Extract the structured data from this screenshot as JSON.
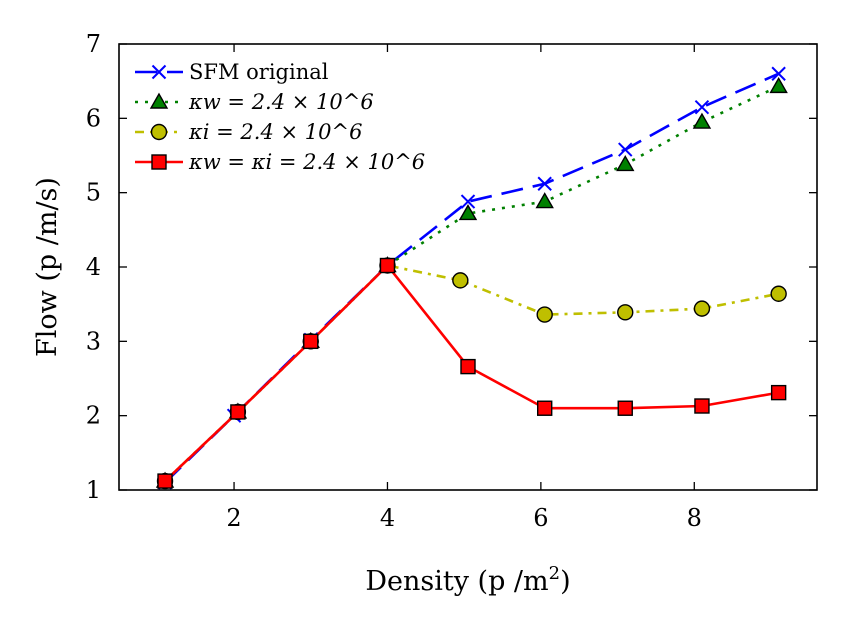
{
  "chart_data": {
    "type": "line",
    "xlabel": "Density (p /m",
    "xlabel_superscript": "2",
    "xlabel_suffix": ")",
    "ylabel": "Flow (p /m/s)",
    "xlim": [
      0.5,
      9.6
    ],
    "ylim": [
      1,
      7
    ],
    "xticks": [
      2,
      4,
      6,
      8
    ],
    "yticks": [
      1,
      2,
      3,
      4,
      5,
      6,
      7
    ],
    "grid": false,
    "legend_position": "top-left",
    "series": [
      {
        "name": "SFM original",
        "color": "#0000ff",
        "line_style": "dashed",
        "marker": "x",
        "x": [
          1.1,
          2.0,
          3.0,
          4.0,
          5.05,
          6.05,
          7.1,
          8.1,
          9.1
        ],
        "y": [
          1.1,
          2.0,
          3.02,
          4.02,
          4.88,
          5.12,
          5.58,
          6.15,
          6.6
        ]
      },
      {
        "name": "κw = 2.4 × 10^6",
        "color": "#008000",
        "marker_color": "#008000",
        "line_style": "dotted",
        "marker": "triangle",
        "x": [
          1.1,
          2.05,
          3.0,
          4.0,
          5.05,
          6.05,
          7.1,
          8.1,
          9.1
        ],
        "y": [
          1.12,
          2.05,
          3.0,
          4.02,
          4.72,
          4.88,
          5.38,
          5.95,
          6.43
        ]
      },
      {
        "name": "κi = 2.4 × 10^6",
        "color": "#bfbf00",
        "marker_color": "#bfbf00",
        "line_style": "dashdot",
        "marker": "circle",
        "x": [
          1.1,
          2.05,
          3.0,
          4.0,
          4.95,
          6.05,
          7.1,
          8.1,
          9.1
        ],
        "y": [
          1.12,
          2.05,
          3.0,
          4.02,
          3.82,
          3.36,
          3.39,
          3.44,
          3.64
        ]
      },
      {
        "name": "κw = κi = 2.4 × 10^6",
        "color": "#ff0000",
        "marker_color": "#ff0000",
        "line_style": "solid",
        "marker": "square",
        "x": [
          1.1,
          2.05,
          3.0,
          4.0,
          5.05,
          6.05,
          7.1,
          8.1,
          9.1
        ],
        "y": [
          1.12,
          2.05,
          3.0,
          4.02,
          2.66,
          2.1,
          2.1,
          2.13,
          2.31
        ]
      }
    ]
  }
}
